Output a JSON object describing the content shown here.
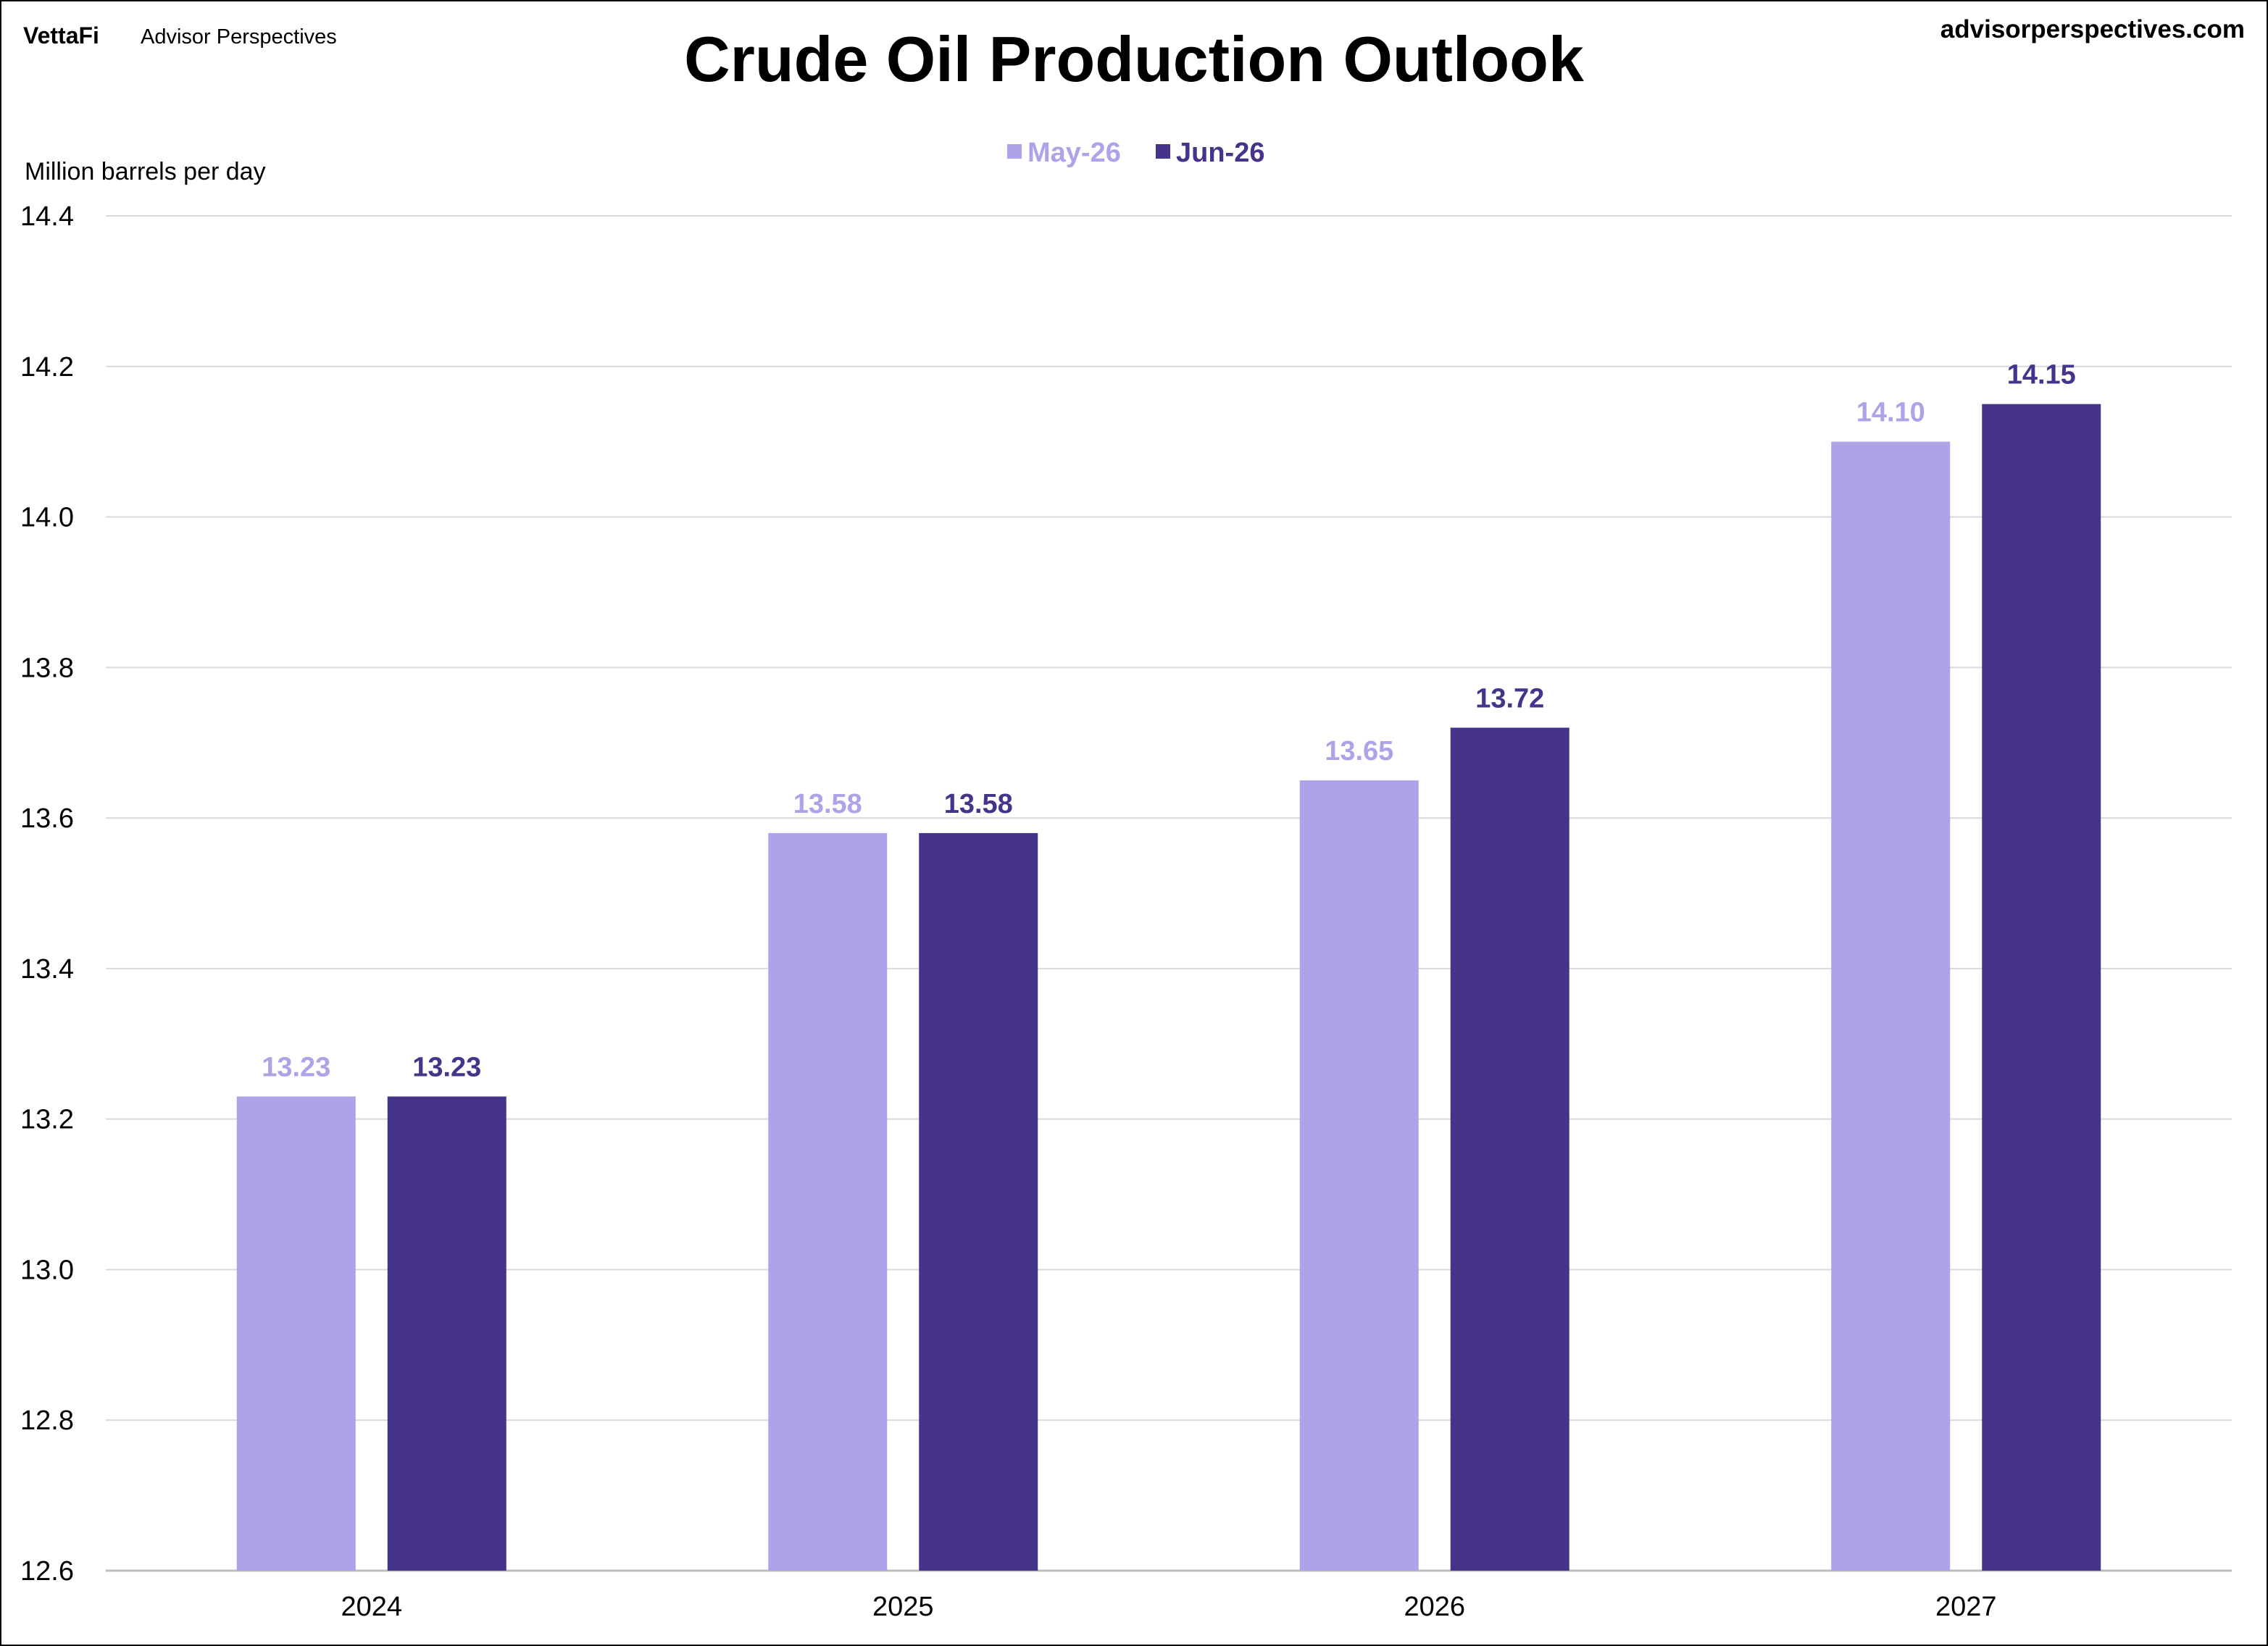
{
  "brand": {
    "logo": "VettaFi",
    "name": "Advisor Perspectives",
    "website": "advisorperspectives.com"
  },
  "chart_data": {
    "type": "bar",
    "title": "Crude Oil Production Outlook",
    "ylabel": "Million barrels per day",
    "xlabel": "",
    "categories": [
      "2024",
      "2025",
      "2026",
      "2027"
    ],
    "series": [
      {
        "name": "May-26",
        "color": "#aea2e8",
        "values": [
          13.23,
          13.58,
          13.65,
          14.1
        ],
        "labels": [
          "13.23",
          "13.58",
          "13.65",
          "14.10"
        ]
      },
      {
        "name": "Jun-26",
        "color": "#46338a",
        "values": [
          13.23,
          13.58,
          13.72,
          14.15
        ],
        "labels": [
          "13.23",
          "13.58",
          "13.72",
          "14.15"
        ]
      }
    ],
    "ylim": [
      12.6,
      14.4
    ],
    "yticks": [
      "12.6",
      "12.8",
      "13.0",
      "13.2",
      "13.4",
      "13.6",
      "13.8",
      "14.0",
      "14.2",
      "14.4"
    ],
    "grid": true,
    "legend_position": "top-center"
  }
}
